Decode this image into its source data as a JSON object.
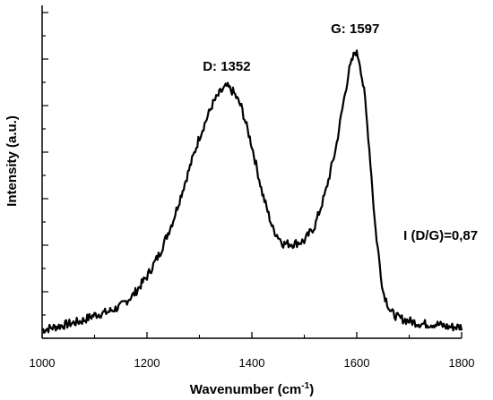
{
  "chart_data": {
    "type": "line",
    "title": "",
    "xlabel": "Wavenumber (cm",
    "xlabel_sup": "-1",
    "xlabel_close": ")",
    "ylabel": "Intensity (a.u.)",
    "xlim": [
      1000,
      1800
    ],
    "ylim": [
      0,
      1
    ],
    "xticks": [
      "1000",
      "1200",
      "1400",
      "1600",
      "1800"
    ],
    "xtick_values": [
      1000,
      1200,
      1400,
      1600,
      1800
    ],
    "y_tick_labels_shown": false,
    "grid": false,
    "annotations": [
      {
        "text": "D: 1352",
        "x": 1352
      },
      {
        "text": "G: 1597",
        "x": 1597
      },
      {
        "text": "I (D/G)=0,87",
        "x": 1760
      }
    ],
    "series": [
      {
        "x": [
          1000,
          1025,
          1050,
          1075,
          1100,
          1125,
          1150,
          1175,
          1200,
          1225,
          1250,
          1275,
          1300,
          1325,
          1340,
          1352,
          1365,
          1380,
          1400,
          1420,
          1440,
          1460,
          1480,
          1500,
          1520,
          1540,
          1560,
          1575,
          1585,
          1597,
          1605,
          1615,
          1625,
          1635,
          1650,
          1665,
          1680,
          1700,
          1725,
          1750,
          1775,
          1800
        ],
        "values": [
          0.01,
          0.02,
          0.03,
          0.04,
          0.06,
          0.07,
          0.09,
          0.13,
          0.19,
          0.27,
          0.38,
          0.52,
          0.66,
          0.77,
          0.81,
          0.83,
          0.81,
          0.76,
          0.63,
          0.47,
          0.35,
          0.3,
          0.3,
          0.31,
          0.36,
          0.47,
          0.62,
          0.78,
          0.88,
          0.95,
          0.92,
          0.8,
          0.6,
          0.36,
          0.14,
          0.07,
          0.05,
          0.04,
          0.03,
          0.03,
          0.02,
          0.02
        ]
      }
    ]
  }
}
